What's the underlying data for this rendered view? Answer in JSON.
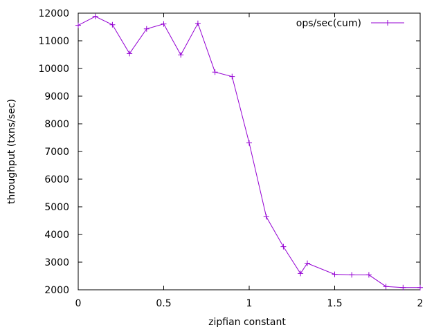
{
  "chart_data": {
    "type": "line",
    "xlabel": "zipfian constant",
    "ylabel": "throughput (txns/sec)",
    "xlim": [
      0,
      2
    ],
    "ylim": [
      2000,
      12000
    ],
    "x_ticks": [
      0,
      0.5,
      1,
      1.5,
      2
    ],
    "x_tick_labels": [
      "0",
      "0.5",
      "1",
      "1.5",
      "2"
    ],
    "y_ticks": [
      2000,
      3000,
      4000,
      5000,
      6000,
      7000,
      8000,
      9000,
      10000,
      11000,
      12000
    ],
    "y_tick_labels": [
      "2000",
      "3000",
      "4000",
      "5000",
      "6000",
      "7000",
      "8000",
      "9000",
      "10000",
      "11000",
      "12000"
    ],
    "grid": false,
    "legend_position": "top-right",
    "series": [
      {
        "name": "ops/sec(cum)",
        "color": "#9400d3",
        "marker": "plus",
        "x": [
          0,
          0.1,
          0.2,
          0.3,
          0.4,
          0.5,
          0.6,
          0.7,
          0.8,
          0.9,
          1.0,
          1.1,
          1.2,
          1.3,
          1.34,
          1.5,
          1.6,
          1.7,
          1.8,
          1.9,
          2.0
        ],
        "y": [
          11560,
          11880,
          11580,
          10540,
          11430,
          11610,
          10490,
          11630,
          9870,
          9710,
          7310,
          4640,
          3560,
          2590,
          2960,
          2560,
          2540,
          2540,
          2120,
          2080,
          2080
        ]
      }
    ]
  }
}
